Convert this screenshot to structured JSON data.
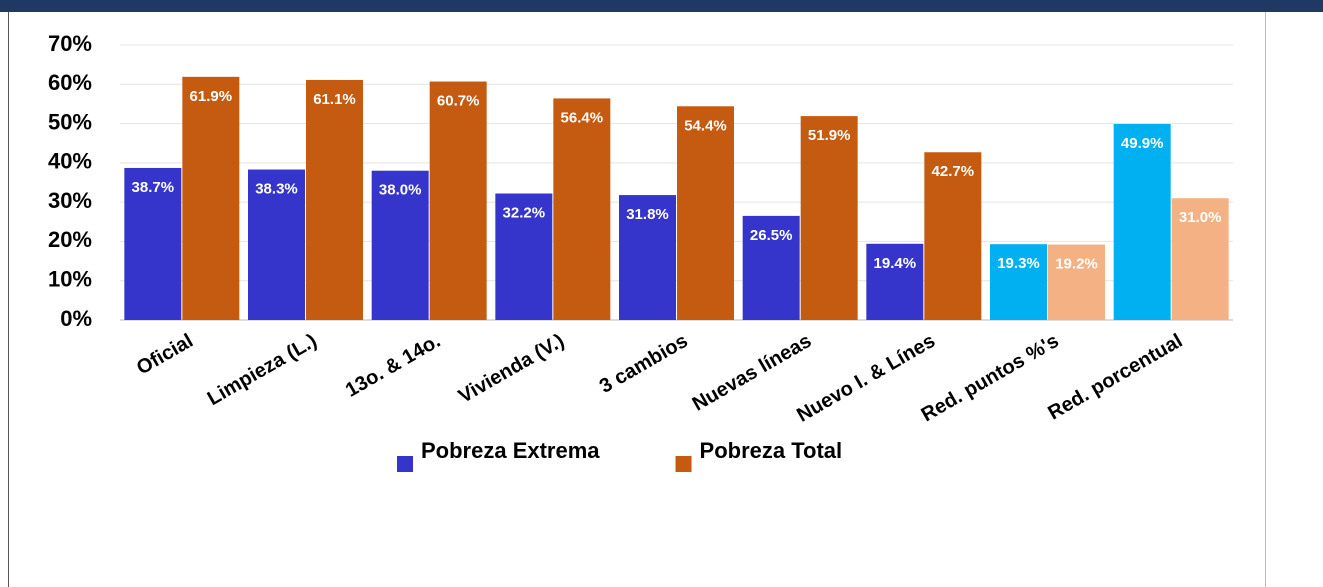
{
  "chart_data": {
    "type": "bar",
    "categories": [
      "Oficial",
      "Limpieza (L.)",
      "13o. & 14o.",
      "Vivienda (V.)",
      "3 cambios",
      "Nuevas líneas",
      "Nuevo I. & Línes",
      "Red. puntos %'s",
      "Red. porcentual"
    ],
    "series": [
      {
        "name": "Pobreza Extrema",
        "color": "#3535cc",
        "colors": [
          "#3535cc",
          "#3535cc",
          "#3535cc",
          "#3535cc",
          "#3535cc",
          "#3535cc",
          "#3535cc",
          "#00b0f0",
          "#00b0f0"
        ],
        "values": [
          38.7,
          38.3,
          38.0,
          32.2,
          31.8,
          26.5,
          19.4,
          19.3,
          49.9
        ],
        "value_labels": [
          "38.7%",
          "38.3%",
          "38.0%",
          "32.2%",
          "31.8%",
          "26.5%",
          "19.4%",
          "19.3%",
          "49.9%"
        ]
      },
      {
        "name": "Pobreza Total",
        "color": "#c55a11",
        "colors": [
          "#c55a11",
          "#c55a11",
          "#c55a11",
          "#c55a11",
          "#c55a11",
          "#c55a11",
          "#c55a11",
          "#f4b183",
          "#f4b183"
        ],
        "values": [
          61.9,
          61.1,
          60.7,
          56.4,
          54.4,
          51.9,
          42.7,
          19.2,
          31.0
        ],
        "value_labels": [
          "61.9%",
          "61.1%",
          "60.7%",
          "56.4%",
          "54.4%",
          "51.9%",
          "42.7%",
          "19.2%",
          "31.0%"
        ]
      }
    ],
    "ylim": [
      0,
      70
    ],
    "yticks": [
      {
        "value": 0,
        "label": "0%"
      },
      {
        "value": 10,
        "label": "10%"
      },
      {
        "value": 20,
        "label": "20%"
      },
      {
        "value": 30,
        "label": "30%"
      },
      {
        "value": 40,
        "label": "40%"
      },
      {
        "value": 50,
        "label": "50%"
      },
      {
        "value": 60,
        "label": "60%"
      },
      {
        "value": 70,
        "label": "70%"
      }
    ],
    "grid": true
  }
}
